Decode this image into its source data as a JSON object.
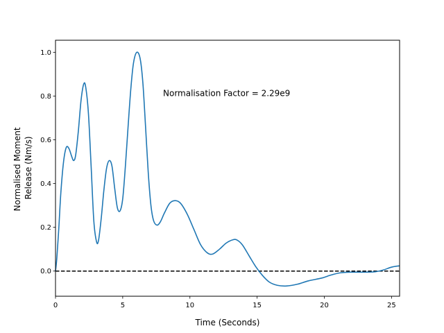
{
  "chart_data": {
    "type": "line",
    "xlabel": "Time (Seconds)",
    "ylabel_lines": [
      "Normalised Moment",
      "Release (Nm/s)"
    ],
    "annotation": "Normalisation Factor = 2.29e9",
    "annotation_pos": {
      "x": 8.0,
      "y": 0.8
    },
    "xlim": [
      0,
      25.6
    ],
    "ylim": [
      -0.115,
      1.055
    ],
    "xticks": [
      0,
      5,
      10,
      15,
      20,
      25
    ],
    "yticks": [
      0.0,
      0.2,
      0.4,
      0.6,
      0.8,
      1.0
    ],
    "xtick_labels": [
      "0",
      "5",
      "10",
      "15",
      "20",
      "25"
    ],
    "ytick_labels": [
      "0.0",
      "0.2",
      "0.4",
      "0.6",
      "0.8",
      "1.0"
    ],
    "grid": false,
    "reference_line": {
      "y": 0.0,
      "style": "dashed",
      "color": "#000000"
    },
    "series": [
      {
        "color": "#1f77b4",
        "points": [
          [
            0.0,
            0.0
          ],
          [
            0.1,
            0.06
          ],
          [
            0.25,
            0.2
          ],
          [
            0.4,
            0.36
          ],
          [
            0.6,
            0.5
          ],
          [
            0.8,
            0.565
          ],
          [
            1.0,
            0.56
          ],
          [
            1.2,
            0.525
          ],
          [
            1.35,
            0.505
          ],
          [
            1.5,
            0.53
          ],
          [
            1.7,
            0.64
          ],
          [
            1.9,
            0.78
          ],
          [
            2.1,
            0.855
          ],
          [
            2.25,
            0.84
          ],
          [
            2.45,
            0.72
          ],
          [
            2.65,
            0.48
          ],
          [
            2.85,
            0.23
          ],
          [
            3.05,
            0.135
          ],
          [
            3.2,
            0.14
          ],
          [
            3.4,
            0.24
          ],
          [
            3.6,
            0.37
          ],
          [
            3.8,
            0.47
          ],
          [
            4.0,
            0.505
          ],
          [
            4.2,
            0.48
          ],
          [
            4.4,
            0.38
          ],
          [
            4.6,
            0.29
          ],
          [
            4.8,
            0.275
          ],
          [
            5.0,
            0.33
          ],
          [
            5.2,
            0.48
          ],
          [
            5.4,
            0.66
          ],
          [
            5.6,
            0.83
          ],
          [
            5.8,
            0.95
          ],
          [
            6.05,
            1.0
          ],
          [
            6.3,
            0.97
          ],
          [
            6.5,
            0.86
          ],
          [
            6.7,
            0.66
          ],
          [
            6.9,
            0.45
          ],
          [
            7.1,
            0.3
          ],
          [
            7.3,
            0.23
          ],
          [
            7.55,
            0.21
          ],
          [
            7.8,
            0.225
          ],
          [
            8.1,
            0.265
          ],
          [
            8.5,
            0.31
          ],
          [
            8.9,
            0.322
          ],
          [
            9.3,
            0.31
          ],
          [
            9.8,
            0.26
          ],
          [
            10.3,
            0.19
          ],
          [
            10.8,
            0.12
          ],
          [
            11.3,
            0.083
          ],
          [
            11.7,
            0.078
          ],
          [
            12.2,
            0.1
          ],
          [
            12.7,
            0.128
          ],
          [
            13.2,
            0.143
          ],
          [
            13.5,
            0.142
          ],
          [
            13.9,
            0.12
          ],
          [
            14.4,
            0.07
          ],
          [
            14.9,
            0.02
          ],
          [
            15.4,
            -0.02
          ],
          [
            15.9,
            -0.05
          ],
          [
            16.5,
            -0.065
          ],
          [
            17.2,
            -0.068
          ],
          [
            18.0,
            -0.06
          ],
          [
            18.8,
            -0.045
          ],
          [
            19.8,
            -0.032
          ],
          [
            20.5,
            -0.018
          ],
          [
            21.2,
            -0.008
          ],
          [
            22.0,
            -0.005
          ],
          [
            23.0,
            -0.005
          ],
          [
            23.8,
            -0.003
          ],
          [
            24.4,
            0.005
          ],
          [
            25.0,
            0.018
          ],
          [
            25.6,
            0.024
          ]
        ]
      }
    ]
  }
}
